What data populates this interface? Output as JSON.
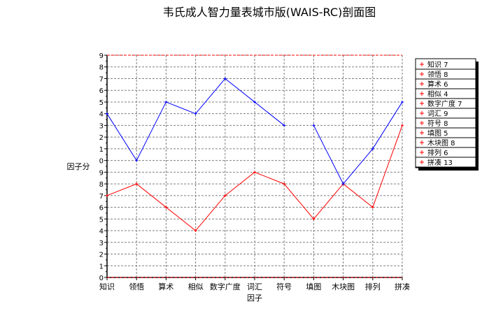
{
  "chart_data": {
    "type": "line",
    "title": "韦氏成人智力量表城市版(WAIS-RC)剖面图",
    "xlabel": "因子",
    "ylabel": "因子分",
    "categories": [
      "知识",
      "领悟",
      "算术",
      "相似",
      "数字广度",
      "词汇",
      "符号",
      "填图",
      "木块图",
      "排列",
      "拼凑"
    ],
    "ylim": [
      0,
      19
    ],
    "yticks": [
      0,
      1,
      2,
      3,
      4,
      5,
      6,
      7,
      8,
      9,
      10,
      11,
      12,
      13,
      14,
      15,
      16,
      17,
      18,
      19
    ],
    "grid": true,
    "legend_placement": "right",
    "reference_lines": [
      0,
      19
    ],
    "series": [
      {
        "color": "#ff0000",
        "values": [
          7,
          8,
          6,
          4,
          7,
          9,
          8,
          5,
          8,
          6,
          13
        ]
      },
      {
        "color": "#0000ff",
        "values": [
          14,
          10,
          15,
          14,
          17,
          15,
          13,
          13,
          8,
          11,
          15
        ],
        "break_after": "符号"
      }
    ],
    "legend": [
      "知识 7",
      "领悟 8",
      "算术 6",
      "相似 4",
      "数字广度 7",
      "词汇 9",
      "符号 8",
      "填图 5",
      "木块图 8",
      "排列 6",
      "拼凑 13"
    ]
  }
}
